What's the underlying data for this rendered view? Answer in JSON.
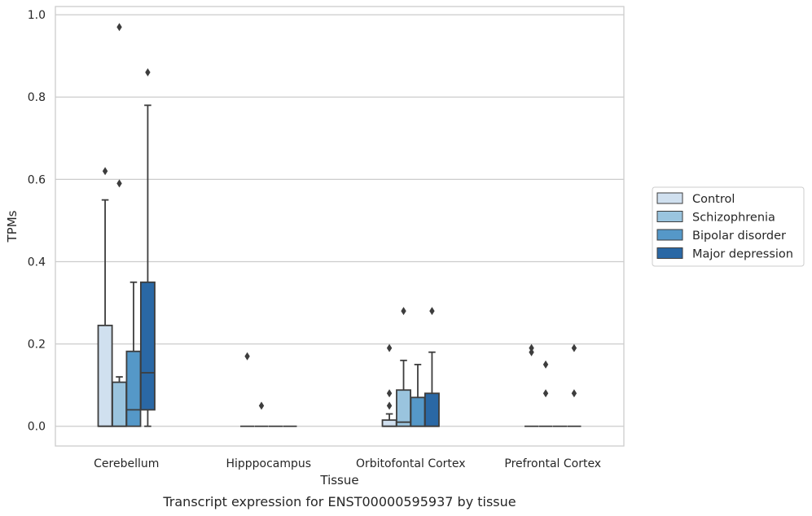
{
  "chart_data": {
    "type": "boxplot",
    "title": "",
    "xlabel": "Tissue",
    "ylabel": "TPMs",
    "caption": "Transcript expression for ENST00000595937 by tissue",
    "ylim": [
      -0.048,
      1.02
    ],
    "yticks": [
      0.0,
      0.2,
      0.4,
      0.6,
      0.8,
      1.0
    ],
    "ytick_labels": [
      "0.0",
      "0.2",
      "0.4",
      "0.6",
      "0.8",
      "1.0"
    ],
    "grid": "horizontal",
    "legend_position": "right",
    "categories": [
      "Cerebellum",
      "Hipppocampus",
      "Orbitofontal Cortex",
      "Prefrontal Cortex"
    ],
    "series": [
      {
        "name": "Control",
        "color": "#d0e0ef",
        "boxes": [
          {
            "min": 0.0,
            "q1": 0.0,
            "median": 0.0,
            "q3": 0.245,
            "max": 0.55,
            "outliers": [
              0.62
            ]
          },
          {
            "min": 0.0,
            "q1": 0.0,
            "median": 0.0,
            "q3": 0.0,
            "max": 0.0,
            "outliers": [
              0.17
            ]
          },
          {
            "min": 0.0,
            "q1": 0.0,
            "median": 0.0,
            "q3": 0.015,
            "max": 0.03,
            "outliers": [
              0.05,
              0.08,
              0.19
            ]
          },
          {
            "min": 0.0,
            "q1": 0.0,
            "median": 0.0,
            "q3": 0.0,
            "max": 0.0,
            "outliers": [
              0.18,
              0.19
            ]
          }
        ]
      },
      {
        "name": "Schizophrenia",
        "color": "#9ac4de",
        "boxes": [
          {
            "min": 0.0,
            "q1": 0.0,
            "median": 0.0,
            "q3": 0.107,
            "max": 0.12,
            "outliers": [
              0.59,
              0.97
            ]
          },
          {
            "min": 0.0,
            "q1": 0.0,
            "median": 0.0,
            "q3": 0.0,
            "max": 0.0,
            "outliers": [
              0.05
            ]
          },
          {
            "min": 0.0,
            "q1": 0.0,
            "median": 0.01,
            "q3": 0.088,
            "max": 0.16,
            "outliers": [
              0.28
            ]
          },
          {
            "min": 0.0,
            "q1": 0.0,
            "median": 0.0,
            "q3": 0.0,
            "max": 0.0,
            "outliers": [
              0.08,
              0.15
            ]
          }
        ]
      },
      {
        "name": "Bipolar disorder",
        "color": "#5598c8",
        "boxes": [
          {
            "min": 0.0,
            "q1": 0.0,
            "median": 0.04,
            "q3": 0.182,
            "max": 0.35,
            "outliers": []
          },
          {
            "min": 0.0,
            "q1": 0.0,
            "median": 0.0,
            "q3": 0.0,
            "max": 0.0,
            "outliers": []
          },
          {
            "min": 0.0,
            "q1": 0.0,
            "median": 0.0,
            "q3": 0.07,
            "max": 0.15,
            "outliers": []
          },
          {
            "min": 0.0,
            "q1": 0.0,
            "median": 0.0,
            "q3": 0.0,
            "max": 0.0,
            "outliers": []
          }
        ]
      },
      {
        "name": "Major depression",
        "color": "#2a68a5",
        "boxes": [
          {
            "min": 0.0,
            "q1": 0.04,
            "median": 0.13,
            "q3": 0.35,
            "max": 0.78,
            "outliers": [
              0.86
            ]
          },
          {
            "min": 0.0,
            "q1": 0.0,
            "median": 0.0,
            "q3": 0.0,
            "max": 0.0,
            "outliers": []
          },
          {
            "min": 0.0,
            "q1": 0.0,
            "median": 0.0,
            "q3": 0.08,
            "max": 0.18,
            "outliers": [
              0.28
            ]
          },
          {
            "min": 0.0,
            "q1": 0.0,
            "median": 0.0,
            "q3": 0.0,
            "max": 0.0,
            "outliers": [
              0.08,
              0.19
            ]
          }
        ]
      }
    ]
  }
}
